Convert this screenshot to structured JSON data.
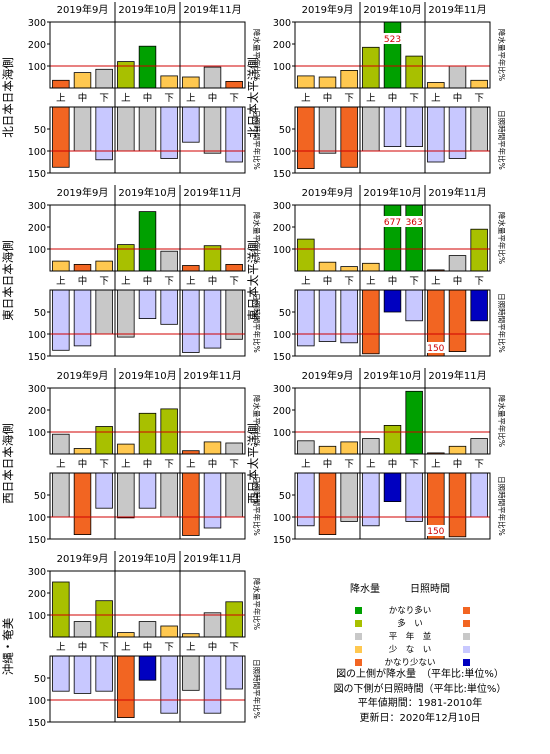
{
  "legend": {
    "precip_header": "降水量",
    "sun_header": "日照時間",
    "items": [
      {
        "label": "かなり多い",
        "precip_color": "#00a000",
        "sun_color": "#f26522"
      },
      {
        "label": "多　い",
        "precip_color": "#a8c000",
        "sun_color": "#f26522"
      },
      {
        "label": "平　年　並",
        "precip_color": "#c8c8c8",
        "sun_color": "#c8c8c8"
      },
      {
        "label": "少　な　い",
        "precip_color": "#ffc850",
        "sun_color": "#c8c8ff"
      },
      {
        "label": "かなり少ない",
        "precip_color": "#f26522",
        "sun_color": "#0000c0"
      }
    ]
  },
  "notes": [
    "図の上側が降水量　（平年比:単位%）",
    "図の下側が日照時間（平年比:単位%）",
    "平年値期間：1981-2010年",
    "更新日：2020年12月10日"
  ],
  "common": {
    "months": [
      "2019年9月",
      "2019年10月",
      "2019年11月"
    ],
    "periods": [
      "上",
      "中",
      "下",
      "上",
      "中",
      "下",
      "上",
      "中",
      "下"
    ],
    "precip_axis_label": "降水量平年比%",
    "sun_axis_label": "日照時間平年比%",
    "precip_ticks": [
      "100",
      "200",
      "300"
    ],
    "sun_ticks": [
      "50",
      "100",
      "150"
    ]
  },
  "chart_data": [
    {
      "type": "bar",
      "region": "北日本日本海側",
      "precip": {
        "values": [
          35,
          70,
          85,
          120,
          190,
          55,
          50,
          95,
          30
        ],
        "classes": [
          4,
          3,
          2,
          1,
          0,
          3,
          3,
          2,
          4
        ]
      },
      "sun": {
        "values": [
          137,
          100,
          120,
          100,
          100,
          117,
          80,
          105,
          125
        ],
        "classes": [
          0,
          2,
          3,
          2,
          2,
          3,
          3,
          2,
          3
        ]
      },
      "labels": []
    },
    {
      "type": "bar",
      "region": "北日本太平洋側",
      "precip": {
        "values": [
          55,
          50,
          80,
          185,
          523,
          145,
          25,
          100,
          35
        ],
        "classes": [
          3,
          3,
          3,
          1,
          0,
          1,
          3,
          2,
          3
        ]
      },
      "sun": {
        "values": [
          140,
          105,
          137,
          100,
          90,
          90,
          125,
          117,
          100
        ],
        "classes": [
          0,
          2,
          0,
          2,
          3,
          3,
          3,
          3,
          2
        ]
      },
      "labels": [
        {
          "panel": "precip",
          "index": 4,
          "text": "523"
        }
      ]
    },
    {
      "type": "bar",
      "region": "東日本日本海側",
      "precip": {
        "values": [
          45,
          30,
          45,
          120,
          270,
          90,
          25,
          115,
          30
        ],
        "classes": [
          3,
          4,
          3,
          1,
          0,
          2,
          4,
          1,
          4
        ]
      },
      "sun": {
        "values": [
          137,
          127,
          100,
          107,
          65,
          78,
          142,
          132,
          112
        ],
        "classes": [
          3,
          3,
          2,
          2,
          3,
          3,
          3,
          3,
          2
        ]
      },
      "labels": []
    },
    {
      "type": "bar",
      "region": "東日本太平洋側",
      "precip": {
        "values": [
          145,
          40,
          20,
          35,
          677,
          363,
          5,
          70,
          190
        ],
        "classes": [
          1,
          3,
          3,
          3,
          0,
          0,
          4,
          2,
          1
        ]
      },
      "sun": {
        "values": [
          127,
          117,
          120,
          145,
          50,
          70,
          150,
          140,
          70
        ],
        "classes": [
          3,
          3,
          3,
          0,
          4,
          3,
          0,
          0,
          4
        ]
      },
      "labels": [
        {
          "panel": "precip",
          "index": 4,
          "text": "677"
        },
        {
          "panel": "precip",
          "index": 5,
          "text": "363"
        },
        {
          "panel": "sun",
          "index": 6,
          "text": "150"
        }
      ]
    },
    {
      "type": "bar",
      "region": "西日本日本海側",
      "precip": {
        "values": [
          90,
          25,
          125,
          45,
          185,
          205,
          15,
          55,
          50
        ],
        "classes": [
          2,
          3,
          1,
          3,
          1,
          1,
          4,
          3,
          2
        ]
      },
      "sun": {
        "values": [
          100,
          140,
          80,
          102,
          80,
          100,
          142,
          125,
          100
        ],
        "classes": [
          2,
          0,
          3,
          2,
          3,
          2,
          0,
          3,
          2
        ]
      },
      "labels": []
    },
    {
      "type": "bar",
      "region": "西日本太平洋側",
      "precip": {
        "values": [
          60,
          35,
          55,
          70,
          130,
          285,
          5,
          35,
          70
        ],
        "classes": [
          2,
          3,
          3,
          2,
          1,
          0,
          4,
          3,
          2
        ]
      },
      "sun": {
        "values": [
          120,
          140,
          110,
          120,
          65,
          110,
          150,
          145,
          100
        ],
        "classes": [
          3,
          0,
          2,
          3,
          4,
          3,
          0,
          0,
          3
        ]
      },
      "labels": [
        {
          "panel": "sun",
          "index": 6,
          "text": "150"
        }
      ]
    },
    {
      "type": "bar",
      "region": "沖縄・奄美",
      "precip": {
        "values": [
          250,
          70,
          165,
          20,
          70,
          50,
          15,
          110,
          160
        ],
        "classes": [
          1,
          2,
          1,
          3,
          2,
          3,
          3,
          2,
          1
        ]
      },
      "sun": {
        "values": [
          80,
          85,
          80,
          140,
          55,
          130,
          78,
          130,
          75
        ],
        "classes": [
          3,
          3,
          3,
          0,
          4,
          3,
          2,
          3,
          3
        ]
      },
      "labels": []
    }
  ]
}
